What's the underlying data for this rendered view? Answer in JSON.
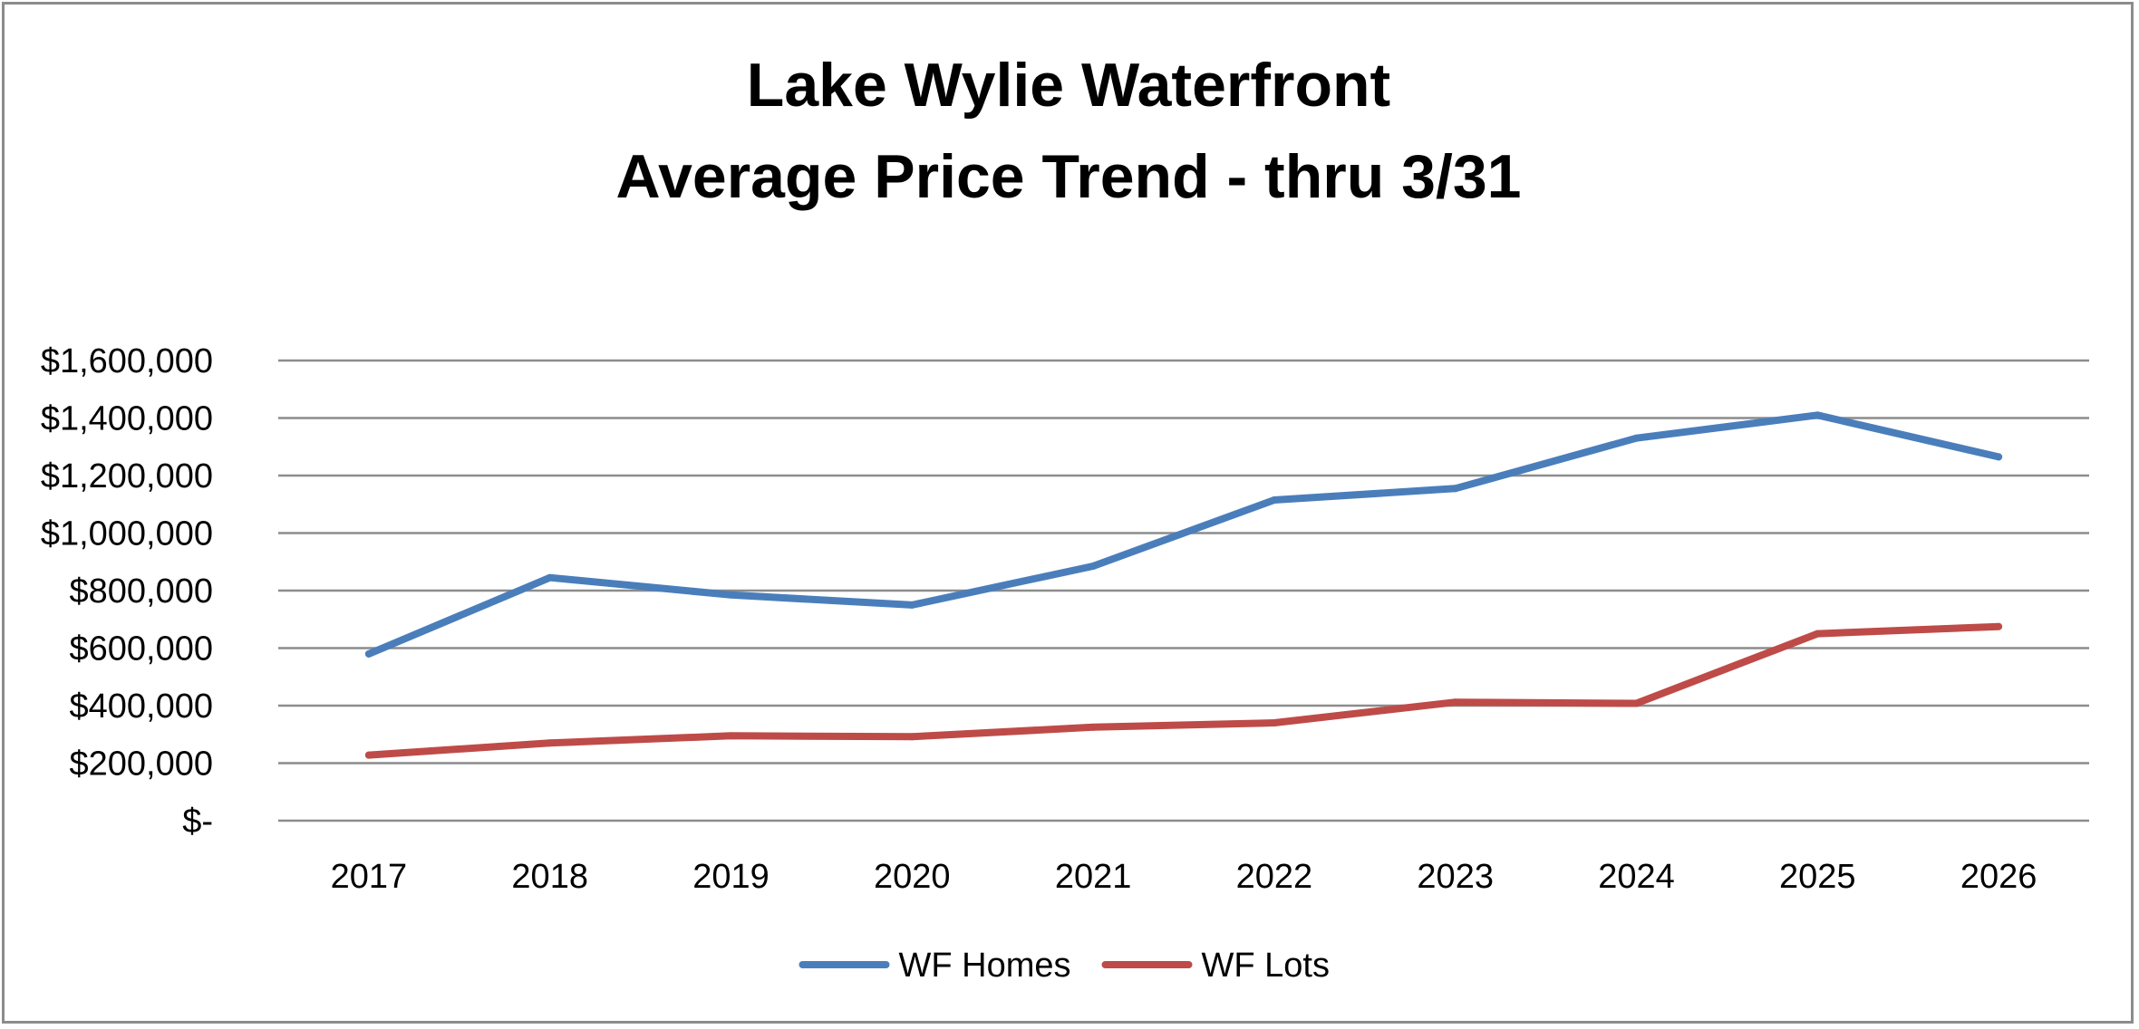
{
  "chart_data": {
    "type": "line",
    "title_lines": [
      "Lake Wylie Waterfront",
      "Average Price Trend - thru 3/31"
    ],
    "xlabel": "",
    "ylabel": "",
    "categories": [
      "2017",
      "2018",
      "2019",
      "2020",
      "2021",
      "2022",
      "2023",
      "2024",
      "2025",
      "2026"
    ],
    "y_ticks": [
      0,
      200000,
      400000,
      600000,
      800000,
      1000000,
      1200000,
      1400000,
      1600000
    ],
    "y_tick_labels": [
      "$-",
      "$200,000",
      "$400,000",
      "$600,000",
      "$800,000",
      "$1,000,000",
      "$1,200,000",
      "$1,400,000",
      "$1,600,000"
    ],
    "ylim": [
      0,
      1600000
    ],
    "grid": true,
    "legend_position": "bottom",
    "series": [
      {
        "name": "WF Homes",
        "color": "#4a7ebb",
        "values": [
          580000,
          845000,
          785000,
          750000,
          885000,
          1115000,
          1155000,
          1330000,
          1410000,
          1265000
        ]
      },
      {
        "name": "WF Lots",
        "color": "#be4b48",
        "values": [
          228000,
          270000,
          295000,
          292000,
          325000,
          340000,
          412000,
          408000,
          650000,
          675000
        ]
      }
    ]
  }
}
